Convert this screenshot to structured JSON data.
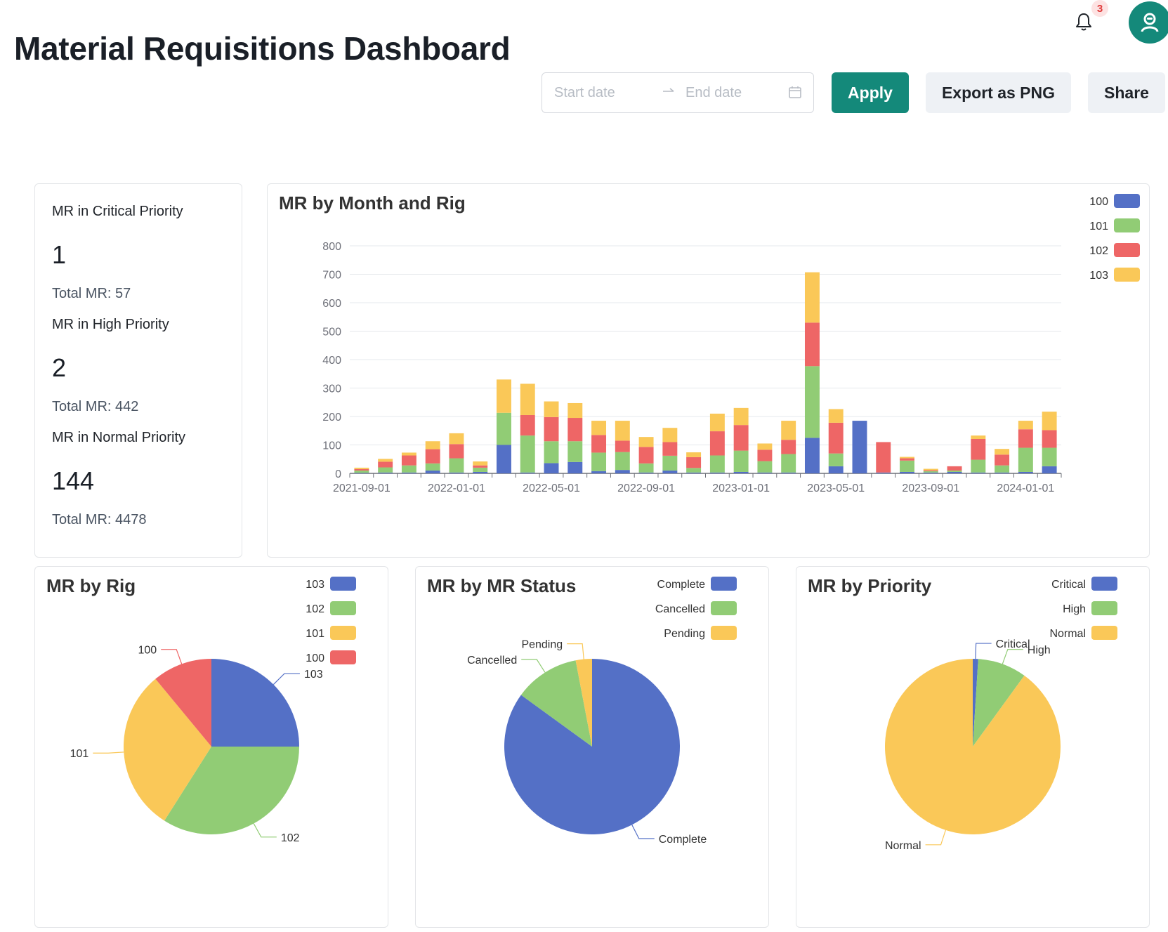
{
  "header": {
    "title": "Material Requisitions Dashboard",
    "notification_count": "3",
    "date_range": {
      "start_placeholder": "Start date",
      "end_placeholder": "End date"
    },
    "buttons": {
      "apply": "Apply",
      "export": "Export as PNG",
      "share": "Share"
    }
  },
  "kpis": [
    {
      "label": "MR in Critical Priority",
      "value": "1",
      "total": "Total MR: 57"
    },
    {
      "label": "MR in High Priority",
      "value": "2",
      "total": "Total MR: 442"
    },
    {
      "label": "MR in Normal Priority",
      "value": "144",
      "total": "Total MR: 4478"
    }
  ],
  "colors": {
    "blue": "#5470c6",
    "green": "#91cc75",
    "yellow": "#fac858",
    "red": "#ee6666",
    "accent": "#14897a"
  },
  "chart_data": [
    {
      "title": "MR by Month and Rig",
      "type": "bar",
      "stacked": true,
      "x": [
        "2021-09-01",
        "2021-10-01",
        "2021-11-01",
        "2021-12-01",
        "2022-01-01",
        "2022-02-01",
        "2022-03-01",
        "2022-04-01",
        "2022-05-01",
        "2022-06-01",
        "2022-07-01",
        "2022-08-01",
        "2022-09-01",
        "2022-10-01",
        "2022-11-01",
        "2022-12-01",
        "2023-01-01",
        "2023-02-01",
        "2023-03-01",
        "2023-04-01",
        "2023-05-01",
        "2023-06-01",
        "2023-07-01",
        "2023-08-01",
        "2023-09-01",
        "2023-10-01",
        "2023-11-01",
        "2023-12-01",
        "2024-01-01",
        "2024-02-01"
      ],
      "x_tick_labels": [
        "2021-09-01",
        "2022-01-01",
        "2022-05-01",
        "2022-09-01",
        "2023-01-01",
        "2023-05-01",
        "2023-09-01",
        "2024-01-01"
      ],
      "ylim": [
        0,
        800
      ],
      "y_ticks": [
        0,
        100,
        200,
        300,
        400,
        500,
        600,
        700,
        800
      ],
      "grid": true,
      "legend_position": "top-right",
      "series": [
        {
          "name": "100",
          "color": "#5470c6",
          "values": [
            2,
            3,
            3,
            10,
            3,
            5,
            100,
            3,
            36,
            40,
            8,
            12,
            3,
            10,
            3,
            3,
            5,
            3,
            3,
            125,
            25,
            185,
            3,
            5,
            3,
            5,
            3,
            3,
            5,
            25
          ]
        },
        {
          "name": "101",
          "color": "#91cc75",
          "values": [
            8,
            18,
            25,
            25,
            50,
            15,
            113,
            130,
            77,
            73,
            65,
            63,
            32,
            52,
            16,
            60,
            75,
            40,
            65,
            252,
            45,
            0,
            0,
            40,
            5,
            5,
            45,
            25,
            85,
            65
          ]
        },
        {
          "name": "102",
          "color": "#ee6666",
          "values": [
            5,
            20,
            35,
            50,
            50,
            8,
            0,
            72,
            85,
            82,
            62,
            40,
            58,
            48,
            38,
            85,
            90,
            40,
            50,
            153,
            108,
            0,
            107,
            8,
            3,
            15,
            73,
            38,
            65,
            62
          ]
        },
        {
          "name": "103",
          "color": "#fac858",
          "values": [
            5,
            10,
            10,
            28,
            38,
            14,
            117,
            110,
            55,
            52,
            50,
            70,
            35,
            50,
            17,
            62,
            60,
            22,
            67,
            177,
            48,
            0,
            0,
            5,
            5,
            0,
            12,
            20,
            30,
            65
          ]
        }
      ]
    },
    {
      "title": "MR by Rig",
      "type": "pie",
      "categories": [
        "103",
        "102",
        "101",
        "100"
      ],
      "values": [
        25,
        34,
        30,
        11
      ],
      "colors": [
        "#5470c6",
        "#91cc75",
        "#fac858",
        "#ee6666"
      ],
      "legend_position": "top-right"
    },
    {
      "title": "MR by MR Status",
      "type": "pie",
      "categories": [
        "Complete",
        "Cancelled",
        "Pending"
      ],
      "values": [
        85,
        12,
        3
      ],
      "colors": [
        "#5470c6",
        "#91cc75",
        "#fac858"
      ],
      "legend_position": "top-right"
    },
    {
      "title": "MR by Priority",
      "type": "pie",
      "categories": [
        "Critical",
        "High",
        "Normal"
      ],
      "values": [
        1,
        9,
        90
      ],
      "colors": [
        "#5470c6",
        "#91cc75",
        "#fac858"
      ],
      "legend_position": "top-right"
    }
  ]
}
